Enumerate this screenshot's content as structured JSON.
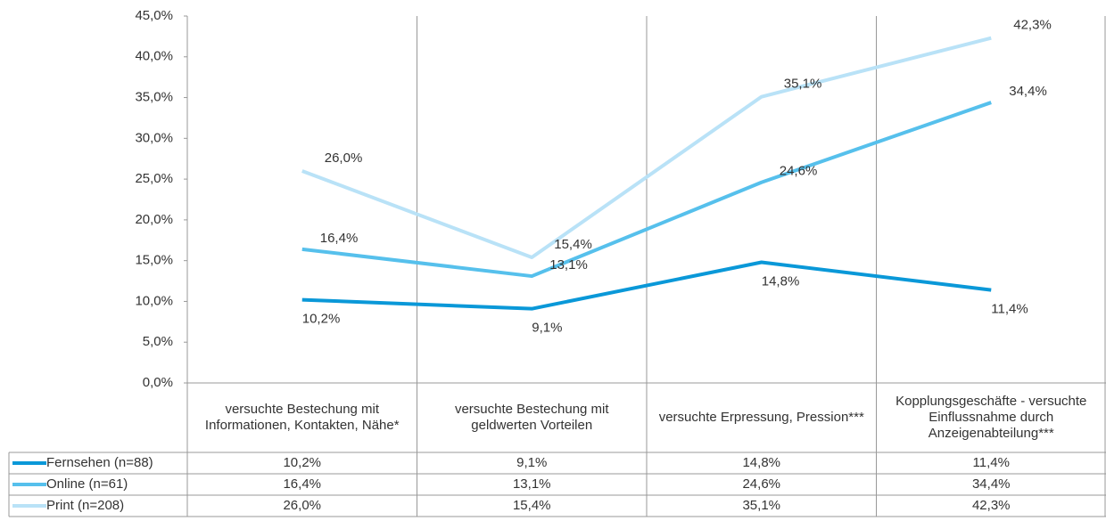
{
  "chart_data": {
    "type": "line",
    "categories": [
      "versuchte Bestechung mit Informationen, Kontakten, Nähe*",
      "versuchte Bestechung mit geldwerten Vorteilen",
      "versuchte Erpressung, Pression***",
      "Kopplungsgeschäfte - versuchte Einflussnahme durch Anzeigenabteilung***"
    ],
    "series": [
      {
        "name": "Fernsehen (n=88)",
        "color": "#0a98d8",
        "values": [
          10.2,
          9.1,
          14.8,
          11.4
        ],
        "value_labels": [
          "10,2%",
          "9,1%",
          "14,8%",
          "11,4%"
        ]
      },
      {
        "name": "Online (n=61)",
        "color": "#56c0ec",
        "values": [
          16.4,
          13.1,
          24.6,
          34.4
        ],
        "value_labels": [
          "16,4%",
          "13,1%",
          "24,6%",
          "34,4%"
        ]
      },
      {
        "name": "Print (n=208)",
        "color": "#b9e2f7",
        "values": [
          26.0,
          15.4,
          35.1,
          42.3
        ],
        "value_labels": [
          "26,0%",
          "15,4%",
          "35,1%",
          "42,3%"
        ]
      }
    ],
    "ylim": [
      0,
      45
    ],
    "yticks": [
      {
        "value": 0,
        "label": "0,0%"
      },
      {
        "value": 5,
        "label": "5,0%"
      },
      {
        "value": 10,
        "label": "10,0%"
      },
      {
        "value": 15,
        "label": "15,0%"
      },
      {
        "value": 20,
        "label": "20,0%"
      },
      {
        "value": 25,
        "label": "25,0%"
      },
      {
        "value": 30,
        "label": "30,0%"
      },
      {
        "value": 35,
        "label": "35,0%"
      },
      {
        "value": 40,
        "label": "40,0%"
      },
      {
        "value": 45,
        "label": "45,0%"
      }
    ],
    "data_table": true
  }
}
